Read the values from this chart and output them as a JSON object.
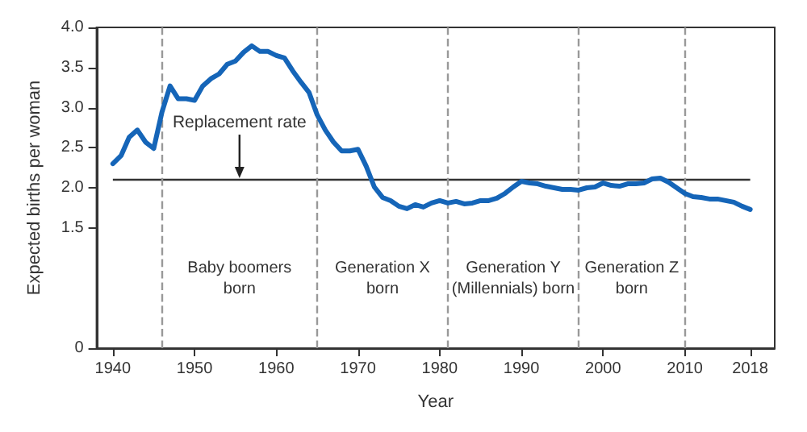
{
  "chart_data": {
    "type": "line",
    "xlabel": "Year",
    "ylabel": "Expected births per woman",
    "x": [
      1940,
      1941,
      1942,
      1943,
      1944,
      1945,
      1946,
      1947,
      1948,
      1949,
      1950,
      1951,
      1952,
      1953,
      1954,
      1955,
      1956,
      1957,
      1958,
      1959,
      1960,
      1961,
      1962,
      1963,
      1964,
      1965,
      1966,
      1967,
      1968,
      1969,
      1970,
      1971,
      1972,
      1973,
      1974,
      1975,
      1976,
      1977,
      1978,
      1979,
      1980,
      1981,
      1982,
      1983,
      1984,
      1985,
      1986,
      1987,
      1988,
      1989,
      1990,
      1991,
      1992,
      1993,
      1994,
      1995,
      1996,
      1997,
      1998,
      1999,
      2000,
      2001,
      2002,
      2003,
      2004,
      2005,
      2006,
      2007,
      2008,
      2009,
      2010,
      2011,
      2012,
      2013,
      2014,
      2015,
      2016,
      2017,
      2018
    ],
    "series": [
      {
        "color": "#1565b8",
        "values": [
          2.3,
          2.4,
          2.63,
          2.72,
          2.57,
          2.49,
          2.94,
          3.27,
          3.11,
          3.11,
          3.09,
          3.27,
          3.36,
          3.42,
          3.54,
          3.58,
          3.69,
          3.77,
          3.7,
          3.7,
          3.65,
          3.62,
          3.46,
          3.32,
          3.19,
          2.91,
          2.72,
          2.57,
          2.46,
          2.46,
          2.48,
          2.27,
          2.01,
          1.88,
          1.84,
          1.77,
          1.74,
          1.79,
          1.76,
          1.81,
          1.84,
          1.81,
          1.83,
          1.8,
          1.81,
          1.84,
          1.84,
          1.87,
          1.93,
          2.01,
          2.08,
          2.06,
          2.05,
          2.02,
          2.0,
          1.98,
          1.98,
          1.97,
          2.0,
          2.01,
          2.06,
          2.03,
          2.02,
          2.05,
          2.05,
          2.06,
          2.11,
          2.12,
          2.07,
          2.0,
          1.93,
          1.89,
          1.88,
          1.86,
          1.86,
          1.84,
          1.82,
          1.77,
          1.73
        ]
      }
    ],
    "xlim": [
      1938,
      2021
    ],
    "xticks": [
      1940,
      1950,
      1960,
      1970,
      1980,
      1990,
      2000,
      2010,
      2018
    ],
    "ylim": [
      0,
      4
    ],
    "yticks": [
      0,
      {
        "value": 1.5,
        "label": "1.5"
      },
      {
        "value": 2,
        "label": "2.0"
      },
      {
        "value": 2.5,
        "label": "2.5"
      },
      {
        "value": 3,
        "label": "3.0"
      },
      {
        "value": 3.5,
        "label": "3.5"
      },
      {
        "value": 4,
        "label": "4.0"
      }
    ],
    "ref_lines": [
      {
        "axis": "y",
        "value": 2.1,
        "color": "#333333",
        "line_style": "solid"
      },
      {
        "axis": "x",
        "value": 1946,
        "color": "#999999",
        "line_style": "dashed"
      },
      {
        "axis": "x",
        "value": 1965,
        "color": "#999999",
        "line_style": "dashed"
      },
      {
        "axis": "x",
        "value": 1981,
        "color": "#999999",
        "line_style": "dashed"
      },
      {
        "axis": "x",
        "value": 1997,
        "color": "#999999",
        "line_style": "dashed"
      },
      {
        "axis": "x",
        "value": 2010,
        "color": "#999999",
        "line_style": "dashed"
      }
    ],
    "annotations": [
      {
        "text": "Replacement rate",
        "x": 1955.5,
        "y": 2.1
      },
      "Baby boomers\nborn",
      "Generation X\nborn",
      "Generation Y\n(Millennials) born",
      "Generation Z\nborn"
    ],
    "grid": false,
    "marker": "none",
    "line_style": "solid"
  }
}
